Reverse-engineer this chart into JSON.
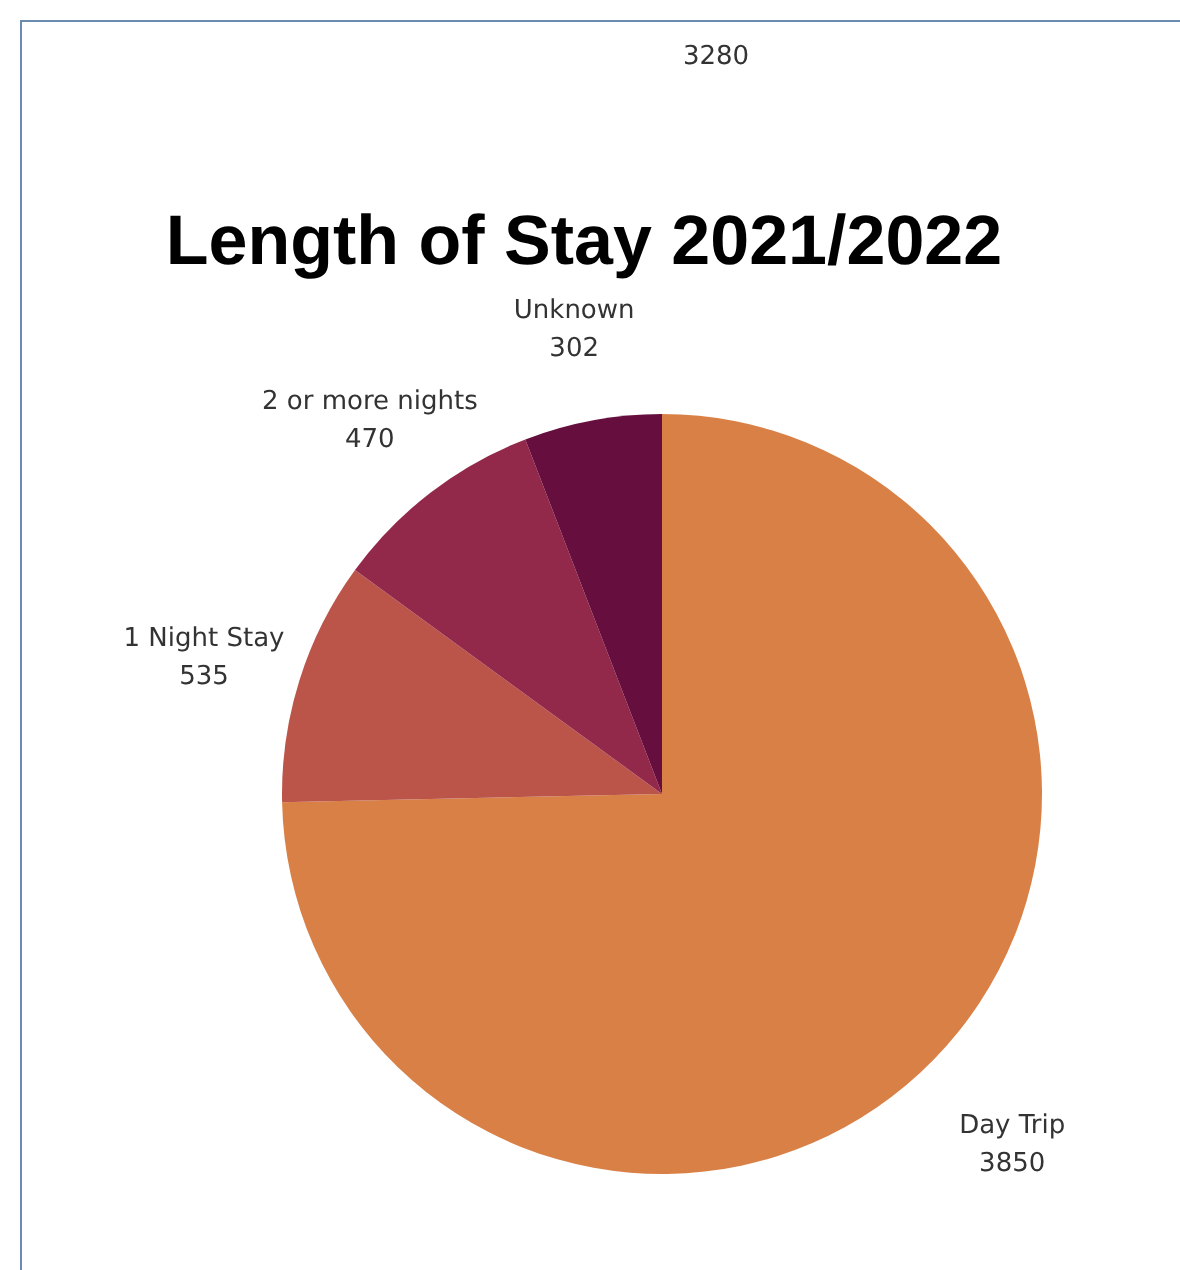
{
  "chart_data": {
    "type": "pie",
    "title": "Length of Stay 2021/2022",
    "categories": [
      "Day Trip",
      "1 Night Stay",
      "2 or more nights",
      "Unknown"
    ],
    "values": [
      3850,
      535,
      470,
      302
    ],
    "colors": [
      "#d98047",
      "#bb554a",
      "#93294a",
      "#660f3f"
    ],
    "data_labels": true,
    "annotations": [
      "3280"
    ]
  }
}
